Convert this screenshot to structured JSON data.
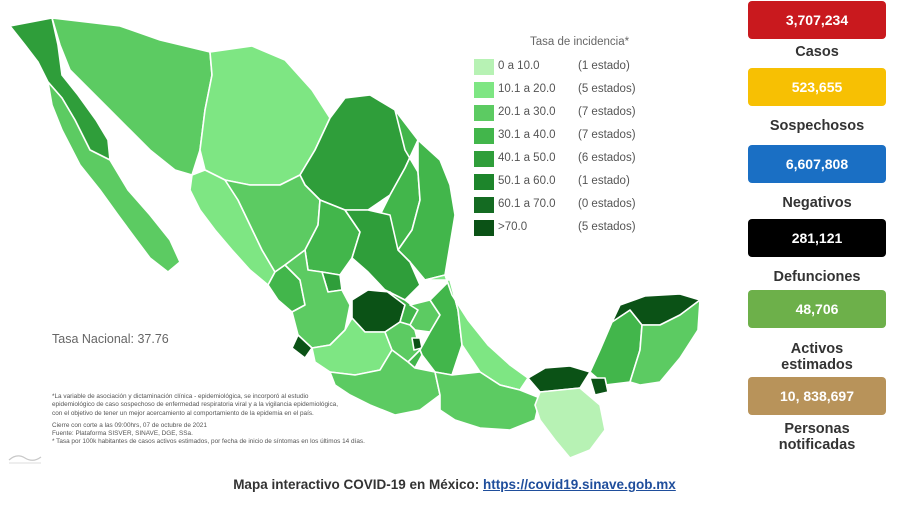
{
  "legend": {
    "title": "Tasa de incidencia*",
    "rows": [
      {
        "range": "0    a  10.0",
        "count": "(1 estado)",
        "color": "#b7f2b4"
      },
      {
        "range": "10.1  a  20.0",
        "count": "(5 estados)",
        "color": "#7ee683"
      },
      {
        "range": "20.1  a  30.0",
        "count": "(7 estados)",
        "color": "#5ccb62"
      },
      {
        "range": "30.1  a  40.0",
        "count": "(7 estados)",
        "color": "#42b64b"
      },
      {
        "range": "40.1  a  50.0",
        "count": "(6 estados)",
        "color": "#2f9e3a"
      },
      {
        "range": "50.1  a  60.0",
        "count": "(1 estado)",
        "color": "#1d852b"
      },
      {
        "range": "60.1  a  70.0",
        "count": "(0 estados)",
        "color": "#146b22"
      },
      {
        "range": ">70.0",
        "count": "(5 estados)",
        "color": "#0b5216"
      }
    ]
  },
  "tasa_nacional": "Tasa Nacional: 37.76",
  "footnotes": {
    "line1": "*La variable de asociación y dictaminación clínica - epidemiológica, se incorporó al estudio",
    "line2": "epidemiológico de caso sospechoso de enfermedad respiratoria viral y a la vigilancia epidemiológica,",
    "line3": "con el objetivo de tener un mejor acercamiento al comportamiento de la epidemia en el país.",
    "line4": "Cierre con corte a las 09:00hrs, 07 de octubre de 2021",
    "line5": "Fuente: Plataforma SISVER, SINAVE, DGE, SSa.",
    "line6": "* Tasa por 100k habitantes de casos activos estimados, por fecha de inicio de síntomas en los últimos 14 días."
  },
  "bottom": {
    "prefix": "Mapa interactivo COVID-19 en México: ",
    "link": "https://covid19.sinave.gob.mx"
  },
  "stats": [
    {
      "value": "3,707,234",
      "label": "Casos",
      "color": "#c9191e"
    },
    {
      "value": "523,655",
      "label": "Sospechosos",
      "color": "#f7c003"
    },
    {
      "value": "6,607,808",
      "label": "Negativos",
      "color": "#1a6fc4"
    },
    {
      "value": "281,121",
      "label": "Defunciones",
      "color": "#000000"
    },
    {
      "value": "48,706",
      "label": "Activos estimados",
      "color": "#6db04a"
    },
    {
      "value": "10, 838,697",
      "label": "Personas notificadas",
      "color": "#b8935a"
    }
  ],
  "stat_labels": {
    "activos_line1": "Activos",
    "activos_line2": "estimados",
    "personas_line1": "Personas",
    "personas_line2": "notificadas"
  }
}
